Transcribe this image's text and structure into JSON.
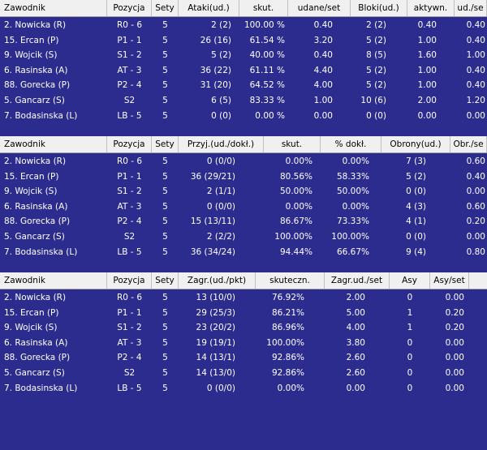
{
  "tables": [
    {
      "columns": [
        "Zawodnik",
        "Pozycja",
        "Sety",
        "Ataki(ud.)",
        "skut.",
        "udane/set",
        "Bloki(ud.)",
        "aktywn.",
        "ud./se"
      ],
      "rows": [
        [
          "2. Nowicka (R)",
          "R0 - 6",
          "5",
          "2 (2)",
          "100.00 %",
          "0.40",
          "2 (2)",
          "0.40",
          "0.40"
        ],
        [
          "15. Ercan (P)",
          "P1 - 1",
          "5",
          "26 (16)",
          "61.54 %",
          "3.20",
          "5 (2)",
          "1.00",
          "0.40"
        ],
        [
          "9. Wojcik (S)",
          "S1 - 2",
          "5",
          "5 (2)",
          "40.00 %",
          "0.40",
          "8 (5)",
          "1.60",
          "1.00"
        ],
        [
          "6. Rasinska (A)",
          "AT - 3",
          "5",
          "36 (22)",
          "61.11 %",
          "4.40",
          "5 (2)",
          "1.00",
          "0.40"
        ],
        [
          "88. Gorecka (P)",
          "P2 - 4",
          "5",
          "31 (20)",
          "64.52 %",
          "4.00",
          "5 (2)",
          "1.00",
          "0.40"
        ],
        [
          "5. Gancarz (S)",
          "S2",
          "5",
          "6 (5)",
          "83.33 %",
          "1.00",
          "10 (6)",
          "2.00",
          "1.20"
        ],
        [
          "7. Bodasinska (L)",
          "LB - 5",
          "5",
          "0 (0)",
          "0.00 %",
          "0.00",
          "0 (0)",
          "0.00",
          "0.00"
        ]
      ]
    },
    {
      "columns": [
        "Zawodnik",
        "Pozycja",
        "Sety",
        "Przyj.(ud./dokł.)",
        "skut.",
        "% dokł.",
        "Obrony(ud.)",
        "Obr./se"
      ],
      "rows": [
        [
          "2. Nowicka (R)",
          "R0 - 6",
          "5",
          "0 (0/0)",
          "0.00%",
          "0.00%",
          "7 (3)",
          "0.60"
        ],
        [
          "15. Ercan (P)",
          "P1 - 1",
          "5",
          "36 (29/21)",
          "80.56%",
          "58.33%",
          "5 (2)",
          "0.40"
        ],
        [
          "9. Wojcik (S)",
          "S1 - 2",
          "5",
          "2 (1/1)",
          "50.00%",
          "50.00%",
          "0 (0)",
          "0.00"
        ],
        [
          "6. Rasinska (A)",
          "AT - 3",
          "5",
          "0 (0/0)",
          "0.00%",
          "0.00%",
          "4 (3)",
          "0.60"
        ],
        [
          "88. Gorecka (P)",
          "P2 - 4",
          "5",
          "15 (13/11)",
          "86.67%",
          "73.33%",
          "4 (1)",
          "0.20"
        ],
        [
          "5. Gancarz (S)",
          "S2",
          "5",
          "2 (2/2)",
          "100.00%",
          "100.00%",
          "0 (0)",
          "0.00"
        ],
        [
          "7. Bodasinska (L)",
          "LB - 5",
          "5",
          "36 (34/24)",
          "94.44%",
          "66.67%",
          "9 (4)",
          "0.80"
        ]
      ]
    },
    {
      "columns": [
        "Zawodnik",
        "Pozycja",
        "Sety",
        "Zagr.(ud./pkt)",
        "skuteczn.",
        "Zagr.ud./set",
        "Asy",
        "Asy/set"
      ],
      "rows": [
        [
          "2. Nowicka (R)",
          "R0 - 6",
          "5",
          "13 (10/0)",
          "76.92%",
          "2.00",
          "0",
          "0.00"
        ],
        [
          "15. Ercan (P)",
          "P1 - 1",
          "5",
          "29 (25/3)",
          "86.21%",
          "5.00",
          "1",
          "0.20"
        ],
        [
          "9. Wojcik (S)",
          "S1 - 2",
          "5",
          "23 (20/2)",
          "86.96%",
          "4.00",
          "1",
          "0.20"
        ],
        [
          "6. Rasinska (A)",
          "AT - 3",
          "5",
          "19 (19/1)",
          "100.00%",
          "3.80",
          "0",
          "0.00"
        ],
        [
          "88. Gorecka (P)",
          "P2 - 4",
          "5",
          "14 (13/1)",
          "92.86%",
          "2.60",
          "0",
          "0.00"
        ],
        [
          "5. Gancarz (S)",
          "S2",
          "5",
          "14 (13/0)",
          "92.86%",
          "2.60",
          "0",
          "0.00"
        ],
        [
          "7. Bodasinska (L)",
          "LB - 5",
          "5",
          "0 (0/0)",
          "0.00%",
          "0.00",
          "0",
          "0.00"
        ]
      ]
    }
  ]
}
